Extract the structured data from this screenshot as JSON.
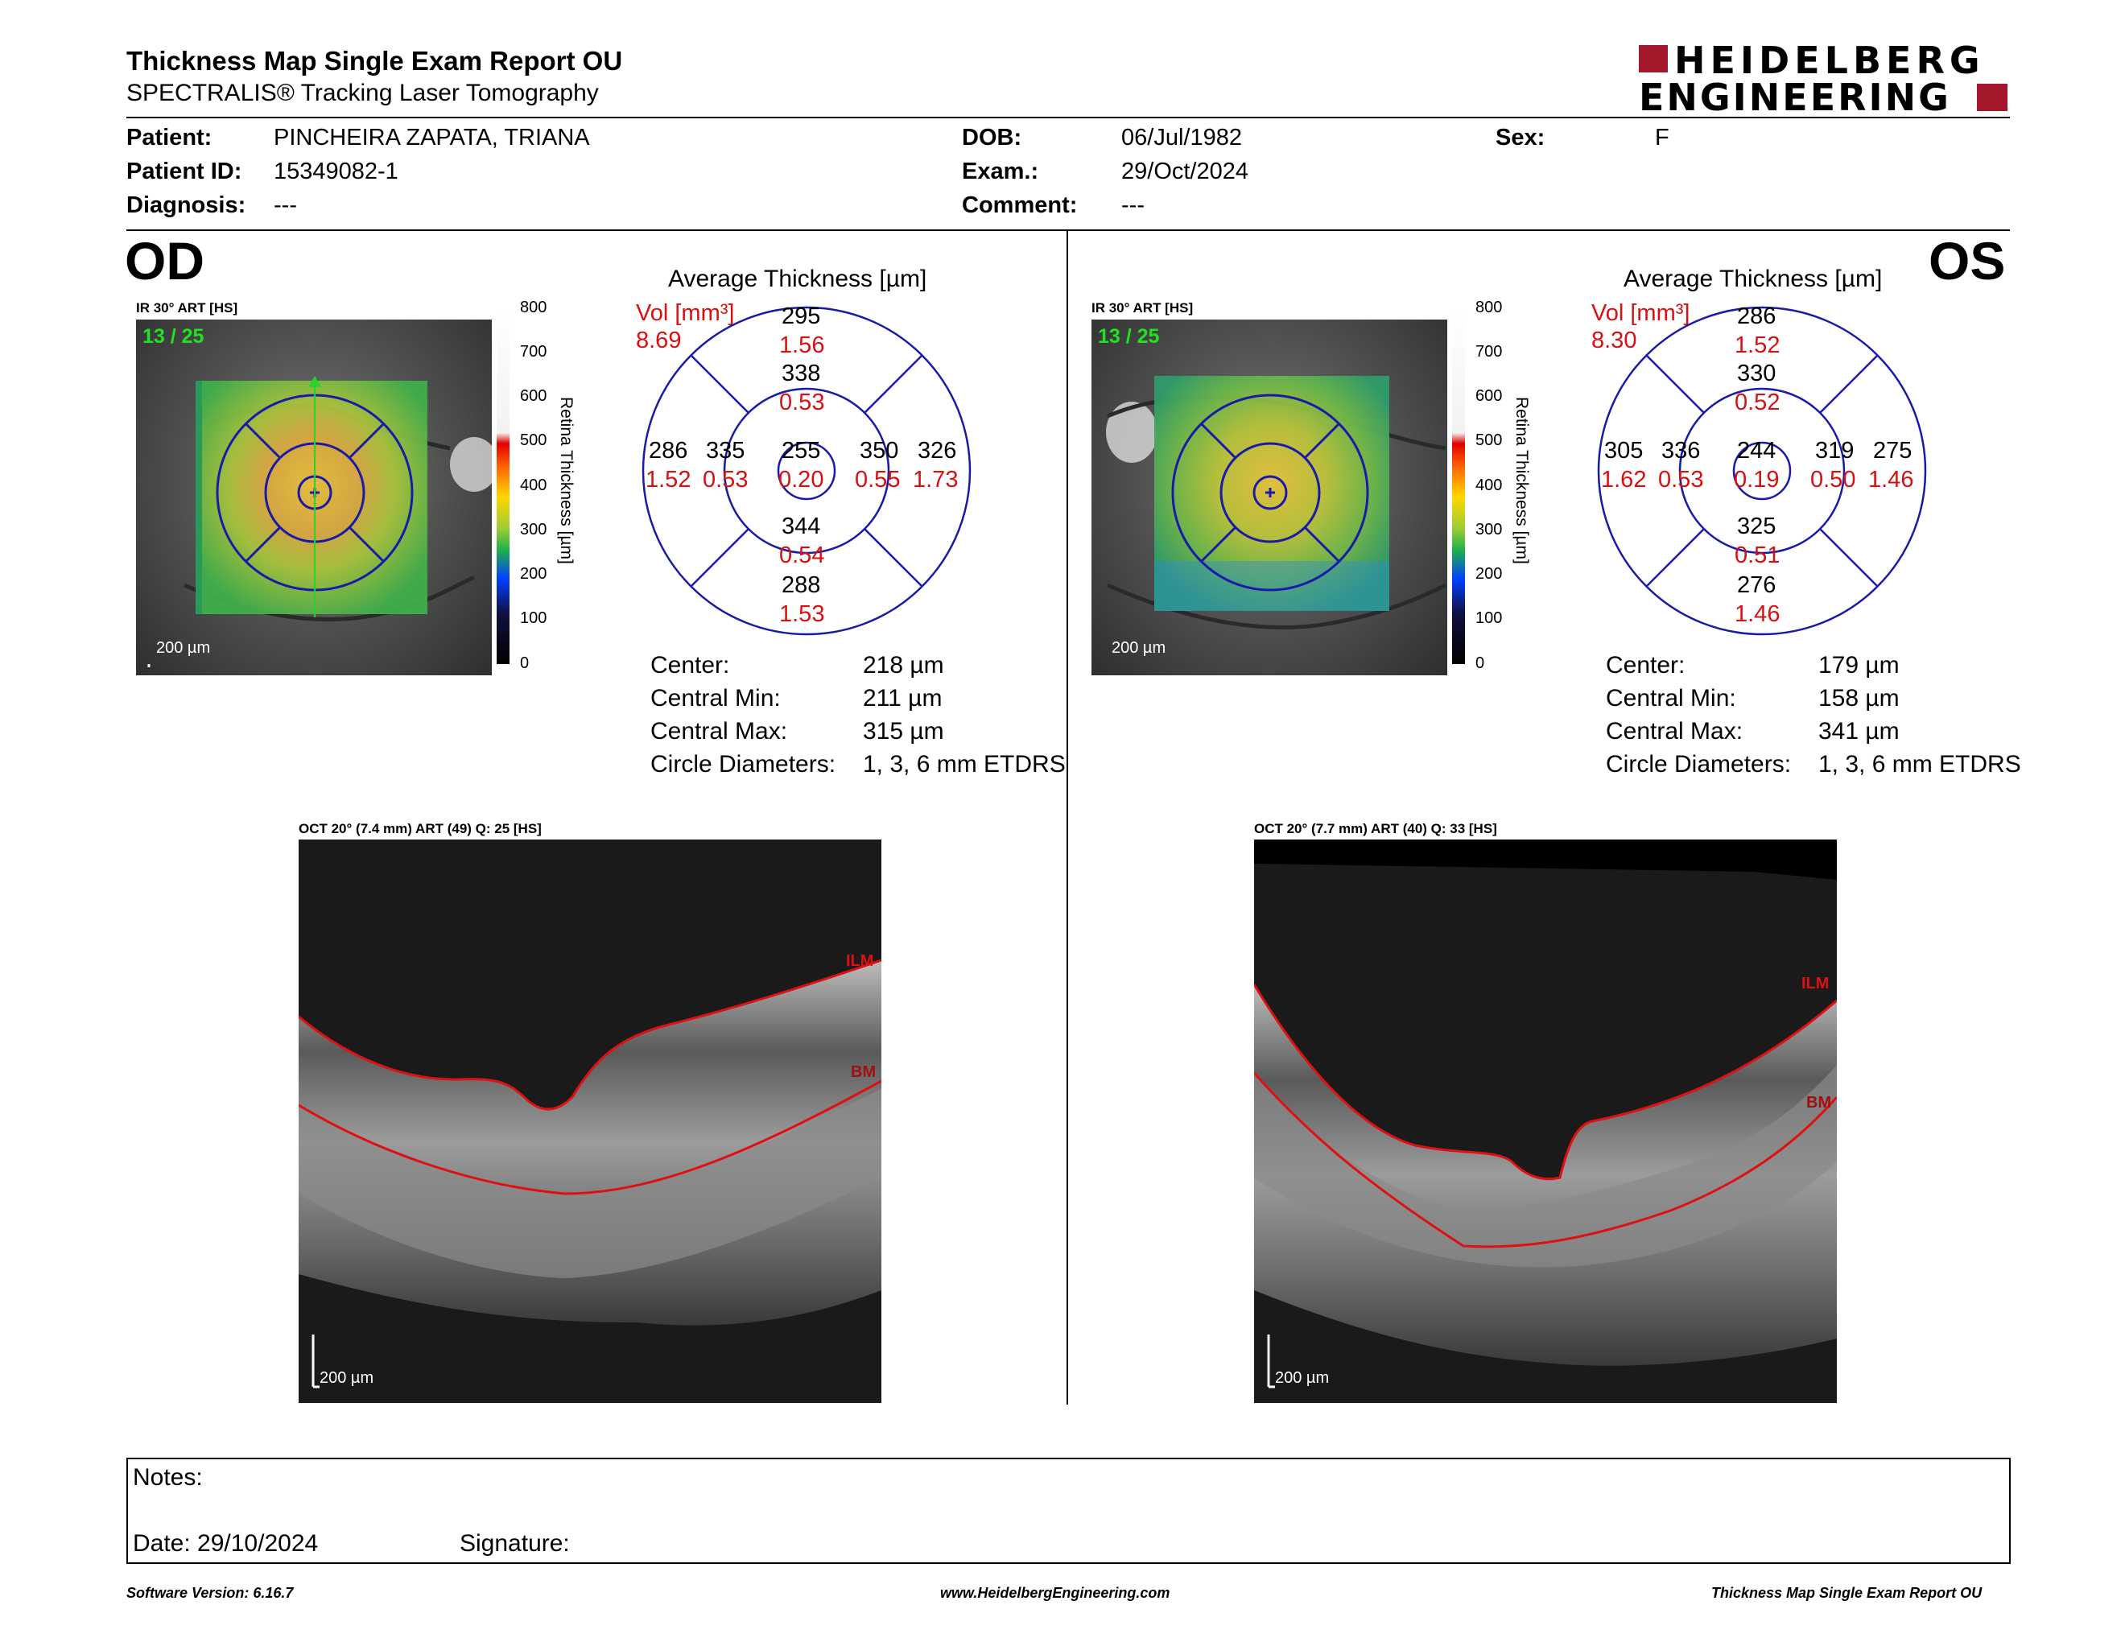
{
  "report": {
    "title": "Thickness Map Single Exam Report OU",
    "subtitle": "SPECTRALIS® Tracking Laser Tomography",
    "brand_line1": "HEIDELBERG",
    "brand_line2": "ENGINEERING",
    "brand_color": "#a3182b"
  },
  "patient": {
    "patient_label": "Patient:",
    "patient_value": "PINCHEIRA ZAPATA, TRIANA",
    "id_label": "Patient ID:",
    "id_value": "15349082-1",
    "diagnosis_label": "Diagnosis:",
    "diagnosis_value": "---",
    "dob_label": "DOB:",
    "dob_value": "06/Jul/1982",
    "exam_label": "Exam.:",
    "exam_value": "29/Oct/2024",
    "comment_label": "Comment:",
    "comment_value": "---",
    "sex_label": "Sex:",
    "sex_value": "F"
  },
  "od": {
    "eye_label": "OD",
    "ir_label": "IR 30° ART [HS]",
    "ir_count": "13 / 25",
    "ir_scale": "200 µm",
    "avg_title": "Average Thickness [µm]",
    "vol_label": "Vol [mm³]",
    "vol_total": "8.69",
    "etdrs": {
      "outer_sup_t": "295",
      "outer_sup_v": "1.56",
      "inner_sup_t": "338",
      "inner_sup_v": "0.53",
      "outer_left_t": "286",
      "outer_left_v": "1.52",
      "inner_left_t": "335",
      "inner_left_v": "0.53",
      "center_t": "255",
      "center_v": "0.20",
      "inner_right_t": "350",
      "inner_right_v": "0.55",
      "outer_right_t": "326",
      "outer_right_v": "1.73",
      "inner_inf_t": "344",
      "inner_inf_v": "0.54",
      "outer_inf_t": "288",
      "outer_inf_v": "1.53"
    },
    "stats": {
      "center_label": "Center:",
      "center_value": "218 µm",
      "min_label": "Central Min:",
      "min_value": "211 µm",
      "max_label": "Central Max:",
      "max_value": "315 µm",
      "diam_label": "Circle Diameters:",
      "diam_value": "1, 3, 6 mm ETDRS"
    },
    "oct_label": "OCT 20° (7.4 mm) ART (49) Q: 25 [HS]",
    "oct_scale": "200 µm",
    "ilm": "ILM",
    "bm": "BM"
  },
  "os": {
    "eye_label": "OS",
    "ir_label": "IR 30° ART [HS]",
    "ir_count": "13 / 25",
    "ir_scale": "200 µm",
    "avg_title": "Average Thickness [µm]",
    "vol_label": "Vol [mm³]",
    "vol_total": "8.30",
    "etdrs": {
      "outer_sup_t": "286",
      "outer_sup_v": "1.52",
      "inner_sup_t": "330",
      "inner_sup_v": "0.52",
      "outer_left_t": "305",
      "outer_left_v": "1.62",
      "inner_left_t": "336",
      "inner_left_v": "0.53",
      "center_t": "244",
      "center_v": "0.19",
      "inner_right_t": "319",
      "inner_right_v": "0.50",
      "outer_right_t": "275",
      "outer_right_v": "1.46",
      "inner_inf_t": "325",
      "inner_inf_v": "0.51",
      "outer_inf_t": "276",
      "outer_inf_v": "1.46"
    },
    "stats": {
      "center_label": "Center:",
      "center_value": "179 µm",
      "min_label": "Central Min:",
      "min_value": "158 µm",
      "max_label": "Central Max:",
      "max_value": "341 µm",
      "diam_label": "Circle Diameters:",
      "diam_value": "1, 3, 6 mm ETDRS"
    },
    "oct_label": "OCT 20° (7.7 mm) ART (40) Q: 33 [HS]",
    "oct_scale": "200 µm",
    "ilm": "ILM",
    "bm": "BM"
  },
  "colorbar": {
    "ticks": [
      "800",
      "700",
      "600",
      "500",
      "400",
      "300",
      "200",
      "100",
      "0"
    ],
    "title": "Retina Thickness [µm]"
  },
  "notes": {
    "notes_label": "Notes:",
    "date_label": "Date: 29/10/2024",
    "signature_label": "Signature:"
  },
  "footer": {
    "version": "Software Version: 6.16.7",
    "website": "www.HeidelbergEngineering.com",
    "report_name": "Thickness Map Single Exam Report OU"
  },
  "colors": {
    "grid_blue": "#1a1aa8",
    "volume_red": "#d81010",
    "segmentation_red": "#e01010",
    "count_green": "#22e022"
  }
}
